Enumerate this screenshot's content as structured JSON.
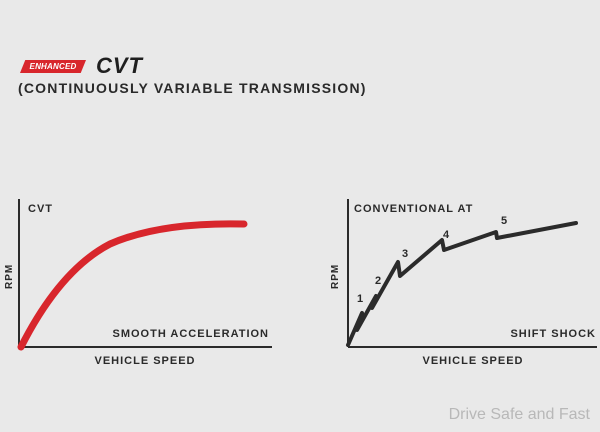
{
  "header": {
    "badge": "ENHANCED",
    "title": "CVT",
    "subtitle": "(CONTINUOUSLY VARIABLE TRANSMISSION)"
  },
  "left_panel": {
    "title": "CVT",
    "ylabel": "RPM",
    "xlabel": "VEHICLE SPEED",
    "caption": "SMOOTH ACCELERATION",
    "curve_color": "#d8262c"
  },
  "right_panel": {
    "title": "CONVENTIONAL AT",
    "ylabel": "RPM",
    "xlabel": "VEHICLE SPEED",
    "caption": "SHIFT SHOCK",
    "gears": [
      "1",
      "2",
      "3",
      "4",
      "5"
    ],
    "curve_color": "#2b2b2b"
  },
  "watermark": "Drive Safe and Fast"
}
